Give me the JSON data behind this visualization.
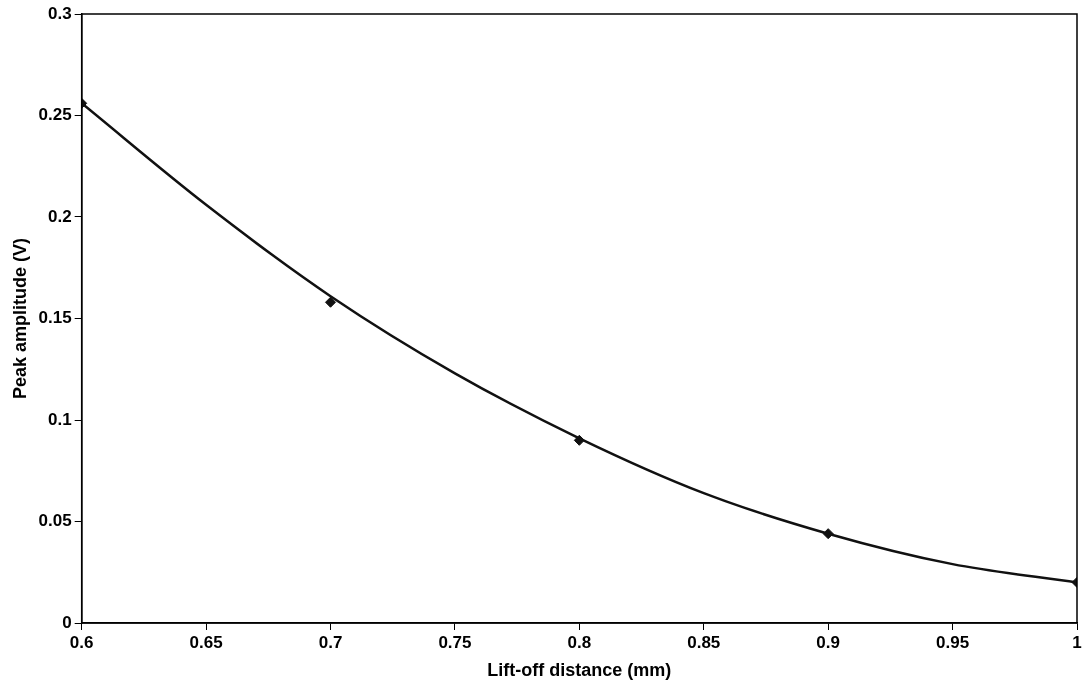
{
  "chart_data": {
    "type": "scatter",
    "xlabel": "Lift-off distance (mm)",
    "ylabel": "Peak amplitude (V)",
    "xlim": [
      0.6,
      1
    ],
    "xticks": [
      0.6,
      0.65,
      0.7,
      0.75,
      0.8,
      0.85,
      0.9,
      0.95,
      1
    ],
    "ylim": [
      0,
      0.3
    ],
    "yticks": [
      0,
      0.05,
      0.1,
      0.15,
      0.2,
      0.25,
      0.3
    ],
    "grid": false,
    "legend": false,
    "series": [
      {
        "type": "scatter",
        "color": "#111111",
        "marker": "diamond",
        "x": [
          0.6,
          0.7,
          0.8,
          0.9,
          1
        ],
        "values": [
          0.256,
          0.158,
          0.09,
          0.044,
          0.02
        ]
      },
      {
        "type": "line",
        "color": "#111111",
        "marker": "none",
        "line_style": "solid",
        "x": [
          0.6,
          0.65,
          0.7,
          0.75,
          0.8,
          0.85,
          0.9,
          0.95,
          1
        ],
        "values": [
          0.256,
          0.206,
          0.161,
          0.123,
          0.091,
          0.064,
          0.044,
          0.029,
          0.02
        ]
      }
    ]
  }
}
